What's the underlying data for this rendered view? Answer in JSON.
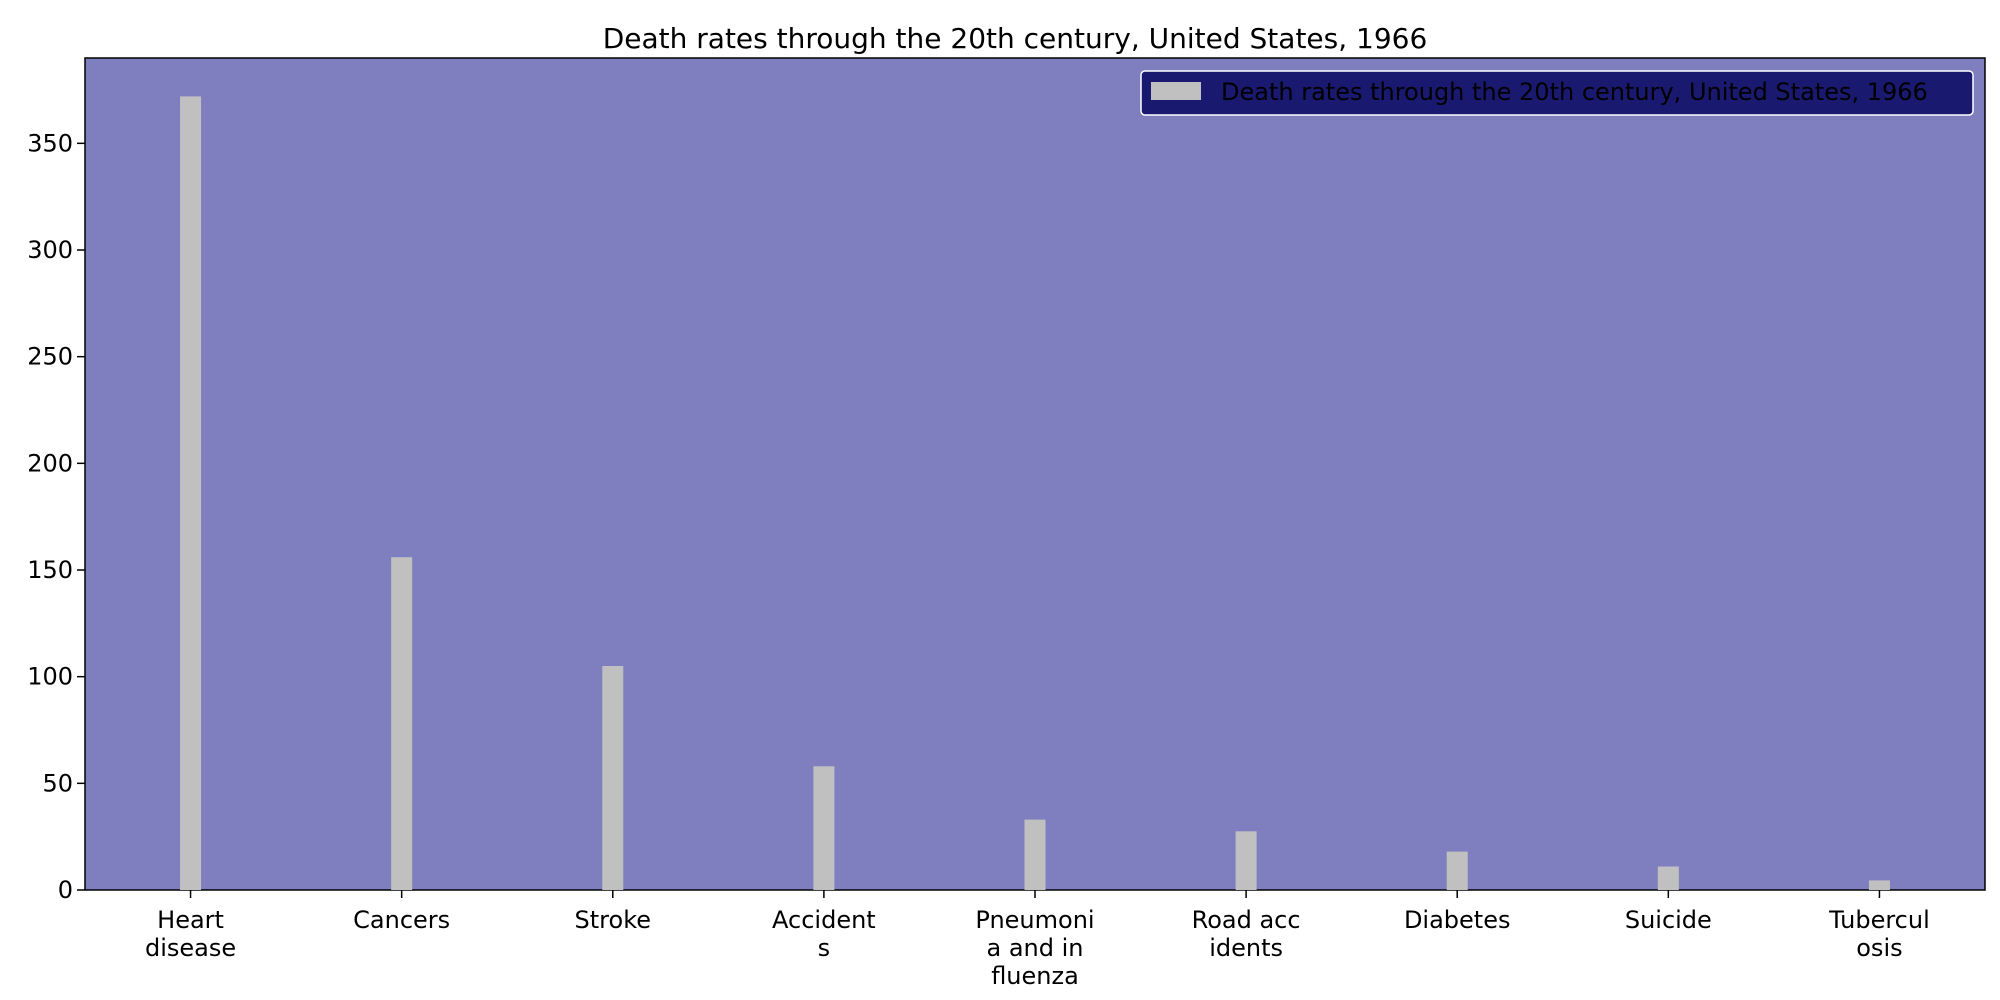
{
  "chart_data": {
    "type": "bar",
    "title": "Death rates through the 20th century, United States, 1966",
    "xlabel": "",
    "ylabel": "",
    "categories": [
      "Heart disease",
      "Cancers",
      "Stroke",
      "Accidents",
      "Pneumonia and influenza",
      "Road accidents",
      "Diabetes",
      "Suicide",
      "Tuberculosis"
    ],
    "category_tick_labels": [
      [
        "Heart",
        "disease"
      ],
      [
        "Cancers"
      ],
      [
        "Stroke"
      ],
      [
        "Accident",
        "s"
      ],
      [
        "Pneumoni",
        "a and in",
        "fluenza"
      ],
      [
        "Road acc",
        "idents"
      ],
      [
        "Diabetes"
      ],
      [
        "Suicide"
      ],
      [
        "Tubercul",
        "osis"
      ]
    ],
    "series": [
      {
        "name": "Death rates through the 20th century, United States, 1966",
        "values": [
          372,
          156,
          105,
          58,
          33,
          27.5,
          18,
          11,
          4.5
        ],
        "color": "#c0c0c0"
      }
    ],
    "ylim": [
      0,
      390
    ],
    "yticks": [
      0,
      50,
      100,
      150,
      200,
      250,
      300,
      350
    ],
    "grid": false,
    "legend_position": "top-right",
    "plot_background": "#7f7fbf",
    "legend_background": "#191970",
    "legend_border": "#ffffff"
  }
}
